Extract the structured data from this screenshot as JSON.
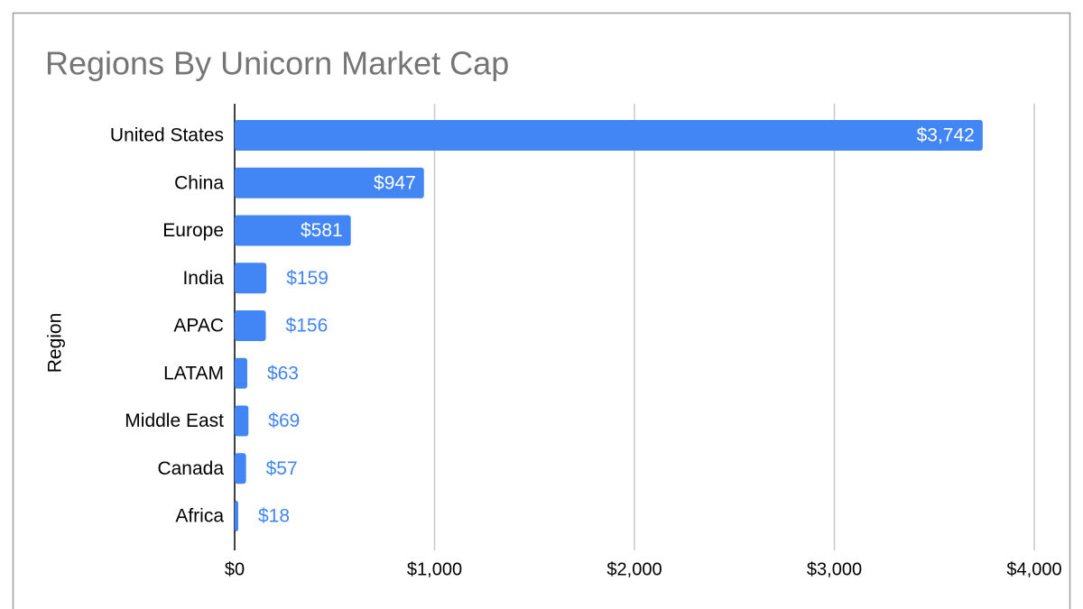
{
  "chart_data": {
    "type": "bar",
    "orientation": "horizontal",
    "title": "Regions By Unicorn Market Cap",
    "y_label": "Region",
    "categories": [
      "United States",
      "China",
      "Europe",
      "India",
      "APAC",
      "LATAM",
      "Middle East",
      "Canada",
      "Africa"
    ],
    "values": [
      3742,
      947,
      581,
      159,
      156,
      63,
      69,
      57,
      18
    ],
    "value_labels": [
      "$3,742",
      "$947",
      "$581",
      "$159",
      "$156",
      "$63",
      "$69",
      "$57",
      "$18"
    ],
    "color": "#4285f4",
    "xlim": [
      0,
      4000
    ],
    "xticks": [
      {
        "value": 0,
        "label": "$0"
      },
      {
        "value": 1000,
        "label": "$1,000"
      },
      {
        "value": 2000,
        "label": "$2,000"
      },
      {
        "value": 3000,
        "label": "$3,000"
      },
      {
        "value": 4000,
        "label": "$4,000"
      }
    ],
    "grid": true
  }
}
